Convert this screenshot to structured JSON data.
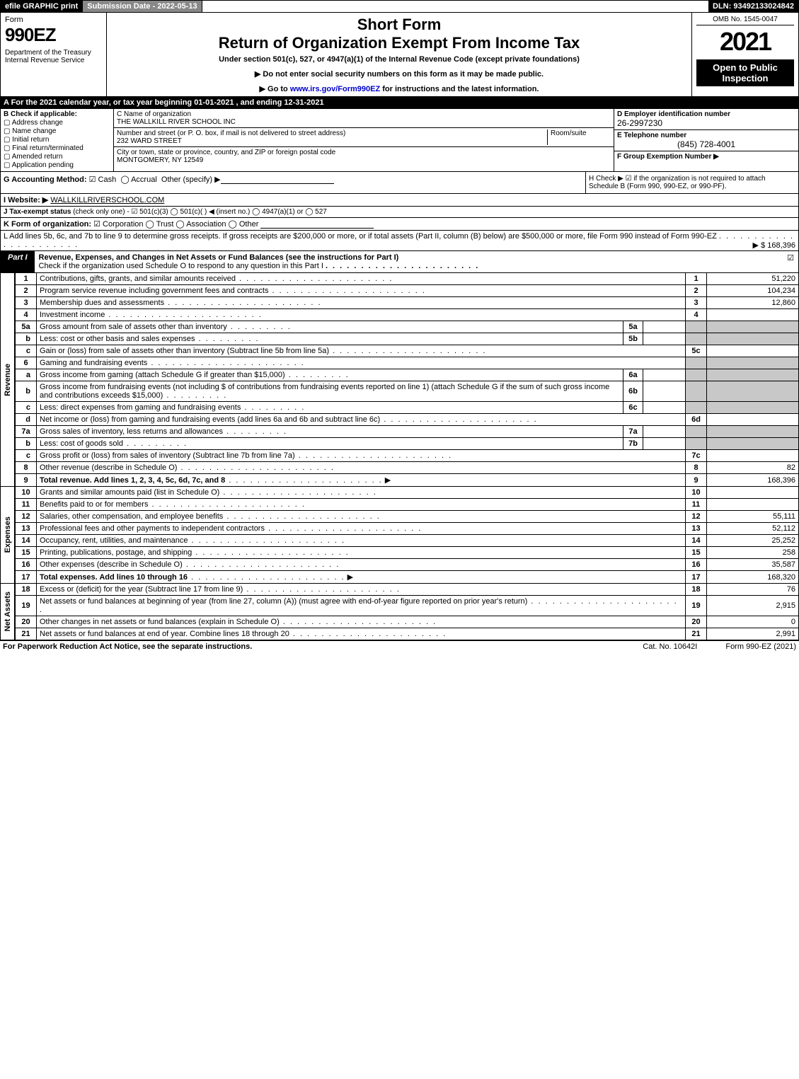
{
  "topbar": {
    "efile": "efile GRAPHIC print",
    "submission": "Submission Date - 2022-05-13",
    "dln": "DLN: 93492133024842"
  },
  "header": {
    "form_label": "Form",
    "form_no": "990EZ",
    "dept": "Department of the Treasury\nInternal Revenue Service",
    "short_form": "Short Form",
    "title": "Return of Organization Exempt From Income Tax",
    "under": "Under section 501(c), 527, or 4947(a)(1) of the Internal Revenue Code (except private foundations)",
    "note1": "▶ Do not enter social security numbers on this form as it may be made public.",
    "note2_pre": "▶ Go to ",
    "note2_link": "www.irs.gov/Form990EZ",
    "note2_post": " for instructions and the latest information.",
    "omb": "OMB No. 1545-0047",
    "year": "2021",
    "open": "Open to Public Inspection"
  },
  "lineA": "A  For the 2021 calendar year, or tax year beginning 01-01-2021 , and ending 12-31-2021",
  "B": {
    "hdr": "B  Check if applicable:",
    "items": [
      "Address change",
      "Name change",
      "Initial return",
      "Final return/terminated",
      "Amended return",
      "Application pending"
    ]
  },
  "C": {
    "name_lbl": "C Name of organization",
    "name": "THE WALLKILL RIVER SCHOOL INC",
    "street_lbl": "Number and street (or P. O. box, if mail is not delivered to street address)",
    "room_lbl": "Room/suite",
    "street": "232 WARD STREET",
    "city_lbl": "City or town, state or province, country, and ZIP or foreign postal code",
    "city": "MONTGOMERY, NY  12549"
  },
  "DEF": {
    "d_lbl": "D Employer identification number",
    "d_val": "26-2997230",
    "e_lbl": "E Telephone number",
    "e_val": "(845) 728-4001",
    "f_lbl": "F Group Exemption Number  ▶"
  },
  "G": {
    "label": "G Accounting Method:",
    "cash": "Cash",
    "accrual": "Accrual",
    "other": "Other (specify) ▶"
  },
  "H": {
    "text": "H  Check ▶ ☑ if the organization is not required to attach Schedule B (Form 990, 990-EZ, or 990-PF)."
  },
  "I": {
    "label": "I Website: ▶",
    "val": "WALLKILLRIVERSCHOOL.COM"
  },
  "J": {
    "label": "J Tax-exempt status",
    "rest": "(check only one) - ☑ 501(c)(3) ◯ 501(c)(  ) ◀ (insert no.) ◯ 4947(a)(1) or ◯ 527"
  },
  "K": {
    "label": "K Form of organization:",
    "rest": "☑ Corporation  ◯ Trust  ◯ Association  ◯ Other"
  },
  "L": {
    "text": "L Add lines 5b, 6c, and 7b to line 9 to determine gross receipts. If gross receipts are $200,000 or more, or if total assets (Part II, column (B) below) are $500,000 or more, file Form 990 instead of Form 990-EZ",
    "amount": "▶ $ 168,396"
  },
  "part1_title": "Revenue, Expenses, and Changes in Net Assets or Fund Balances (see the instructions for Part I)",
  "part1_sub": "Check if the organization used Schedule O to respond to any question in this Part I",
  "revenue": [
    {
      "n": "1",
      "d": "Contributions, gifts, grants, and similar amounts received",
      "ln": "1",
      "amt": "51,220"
    },
    {
      "n": "2",
      "d": "Program service revenue including government fees and contracts",
      "ln": "2",
      "amt": "104,234"
    },
    {
      "n": "3",
      "d": "Membership dues and assessments",
      "ln": "3",
      "amt": "12,860"
    },
    {
      "n": "4",
      "d": "Investment income",
      "ln": "4",
      "amt": ""
    },
    {
      "n": "5a",
      "d": "Gross amount from sale of assets other than inventory",
      "mini": "5a",
      "ln": "",
      "amt": "",
      "shade": true
    },
    {
      "n": "b",
      "d": "Less: cost or other basis and sales expenses",
      "mini": "5b",
      "ln": "",
      "amt": "",
      "shade": true
    },
    {
      "n": "c",
      "d": "Gain or (loss) from sale of assets other than inventory (Subtract line 5b from line 5a)",
      "ln": "5c",
      "amt": ""
    },
    {
      "n": "6",
      "d": "Gaming and fundraising events",
      "ln": "",
      "amt": "",
      "shade": true,
      "noln": true
    },
    {
      "n": "a",
      "d": "Gross income from gaming (attach Schedule G if greater than $15,000)",
      "mini": "6a",
      "ln": "",
      "amt": "",
      "shade": true
    },
    {
      "n": "b",
      "d": "Gross income from fundraising events (not including $                    of contributions from fundraising events reported on line 1) (attach Schedule G if the sum of such gross income and contributions exceeds $15,000)",
      "mini": "6b",
      "ln": "",
      "amt": "",
      "shade": true
    },
    {
      "n": "c",
      "d": "Less: direct expenses from gaming and fundraising events",
      "mini": "6c",
      "ln": "",
      "amt": "",
      "shade": true
    },
    {
      "n": "d",
      "d": "Net income or (loss) from gaming and fundraising events (add lines 6a and 6b and subtract line 6c)",
      "ln": "6d",
      "amt": ""
    },
    {
      "n": "7a",
      "d": "Gross sales of inventory, less returns and allowances",
      "mini": "7a",
      "ln": "",
      "amt": "",
      "shade": true
    },
    {
      "n": "b",
      "d": "Less: cost of goods sold",
      "mini": "7b",
      "ln": "",
      "amt": "",
      "shade": true
    },
    {
      "n": "c",
      "d": "Gross profit or (loss) from sales of inventory (Subtract line 7b from line 7a)",
      "ln": "7c",
      "amt": ""
    },
    {
      "n": "8",
      "d": "Other revenue (describe in Schedule O)",
      "ln": "8",
      "amt": "82"
    },
    {
      "n": "9",
      "d": "Total revenue. Add lines 1, 2, 3, 4, 5c, 6d, 7c, and 8",
      "ln": "9",
      "amt": "168,396",
      "bold": true,
      "arrow": true
    }
  ],
  "expenses": [
    {
      "n": "10",
      "d": "Grants and similar amounts paid (list in Schedule O)",
      "ln": "10",
      "amt": ""
    },
    {
      "n": "11",
      "d": "Benefits paid to or for members",
      "ln": "11",
      "amt": ""
    },
    {
      "n": "12",
      "d": "Salaries, other compensation, and employee benefits",
      "ln": "12",
      "amt": "55,111"
    },
    {
      "n": "13",
      "d": "Professional fees and other payments to independent contractors",
      "ln": "13",
      "amt": "52,112"
    },
    {
      "n": "14",
      "d": "Occupancy, rent, utilities, and maintenance",
      "ln": "14",
      "amt": "25,252"
    },
    {
      "n": "15",
      "d": "Printing, publications, postage, and shipping",
      "ln": "15",
      "amt": "258"
    },
    {
      "n": "16",
      "d": "Other expenses (describe in Schedule O)",
      "ln": "16",
      "amt": "35,587"
    },
    {
      "n": "17",
      "d": "Total expenses. Add lines 10 through 16",
      "ln": "17",
      "amt": "168,320",
      "bold": true,
      "arrow": true
    }
  ],
  "netassets": [
    {
      "n": "18",
      "d": "Excess or (deficit) for the year (Subtract line 17 from line 9)",
      "ln": "18",
      "amt": "76"
    },
    {
      "n": "19",
      "d": "Net assets or fund balances at beginning of year (from line 27, column (A)) (must agree with end-of-year figure reported on prior year's return)",
      "ln": "19",
      "amt": "2,915"
    },
    {
      "n": "20",
      "d": "Other changes in net assets or fund balances (explain in Schedule O)",
      "ln": "20",
      "amt": "0"
    },
    {
      "n": "21",
      "d": "Net assets or fund balances at end of year. Combine lines 18 through 20",
      "ln": "21",
      "amt": "2,991"
    }
  ],
  "section_labels": {
    "rev": "Revenue",
    "exp": "Expenses",
    "na": "Net Assets"
  },
  "part_label": "Part I",
  "footer": {
    "left": "For Paperwork Reduction Act Notice, see the separate instructions.",
    "center": "Cat. No. 10642I",
    "right": "Form 990-EZ (2021)"
  },
  "colors": {
    "black": "#000000",
    "white": "#ffffff",
    "gray": "#888888",
    "shade": "#c8c8c8",
    "link": "#0000cc"
  }
}
